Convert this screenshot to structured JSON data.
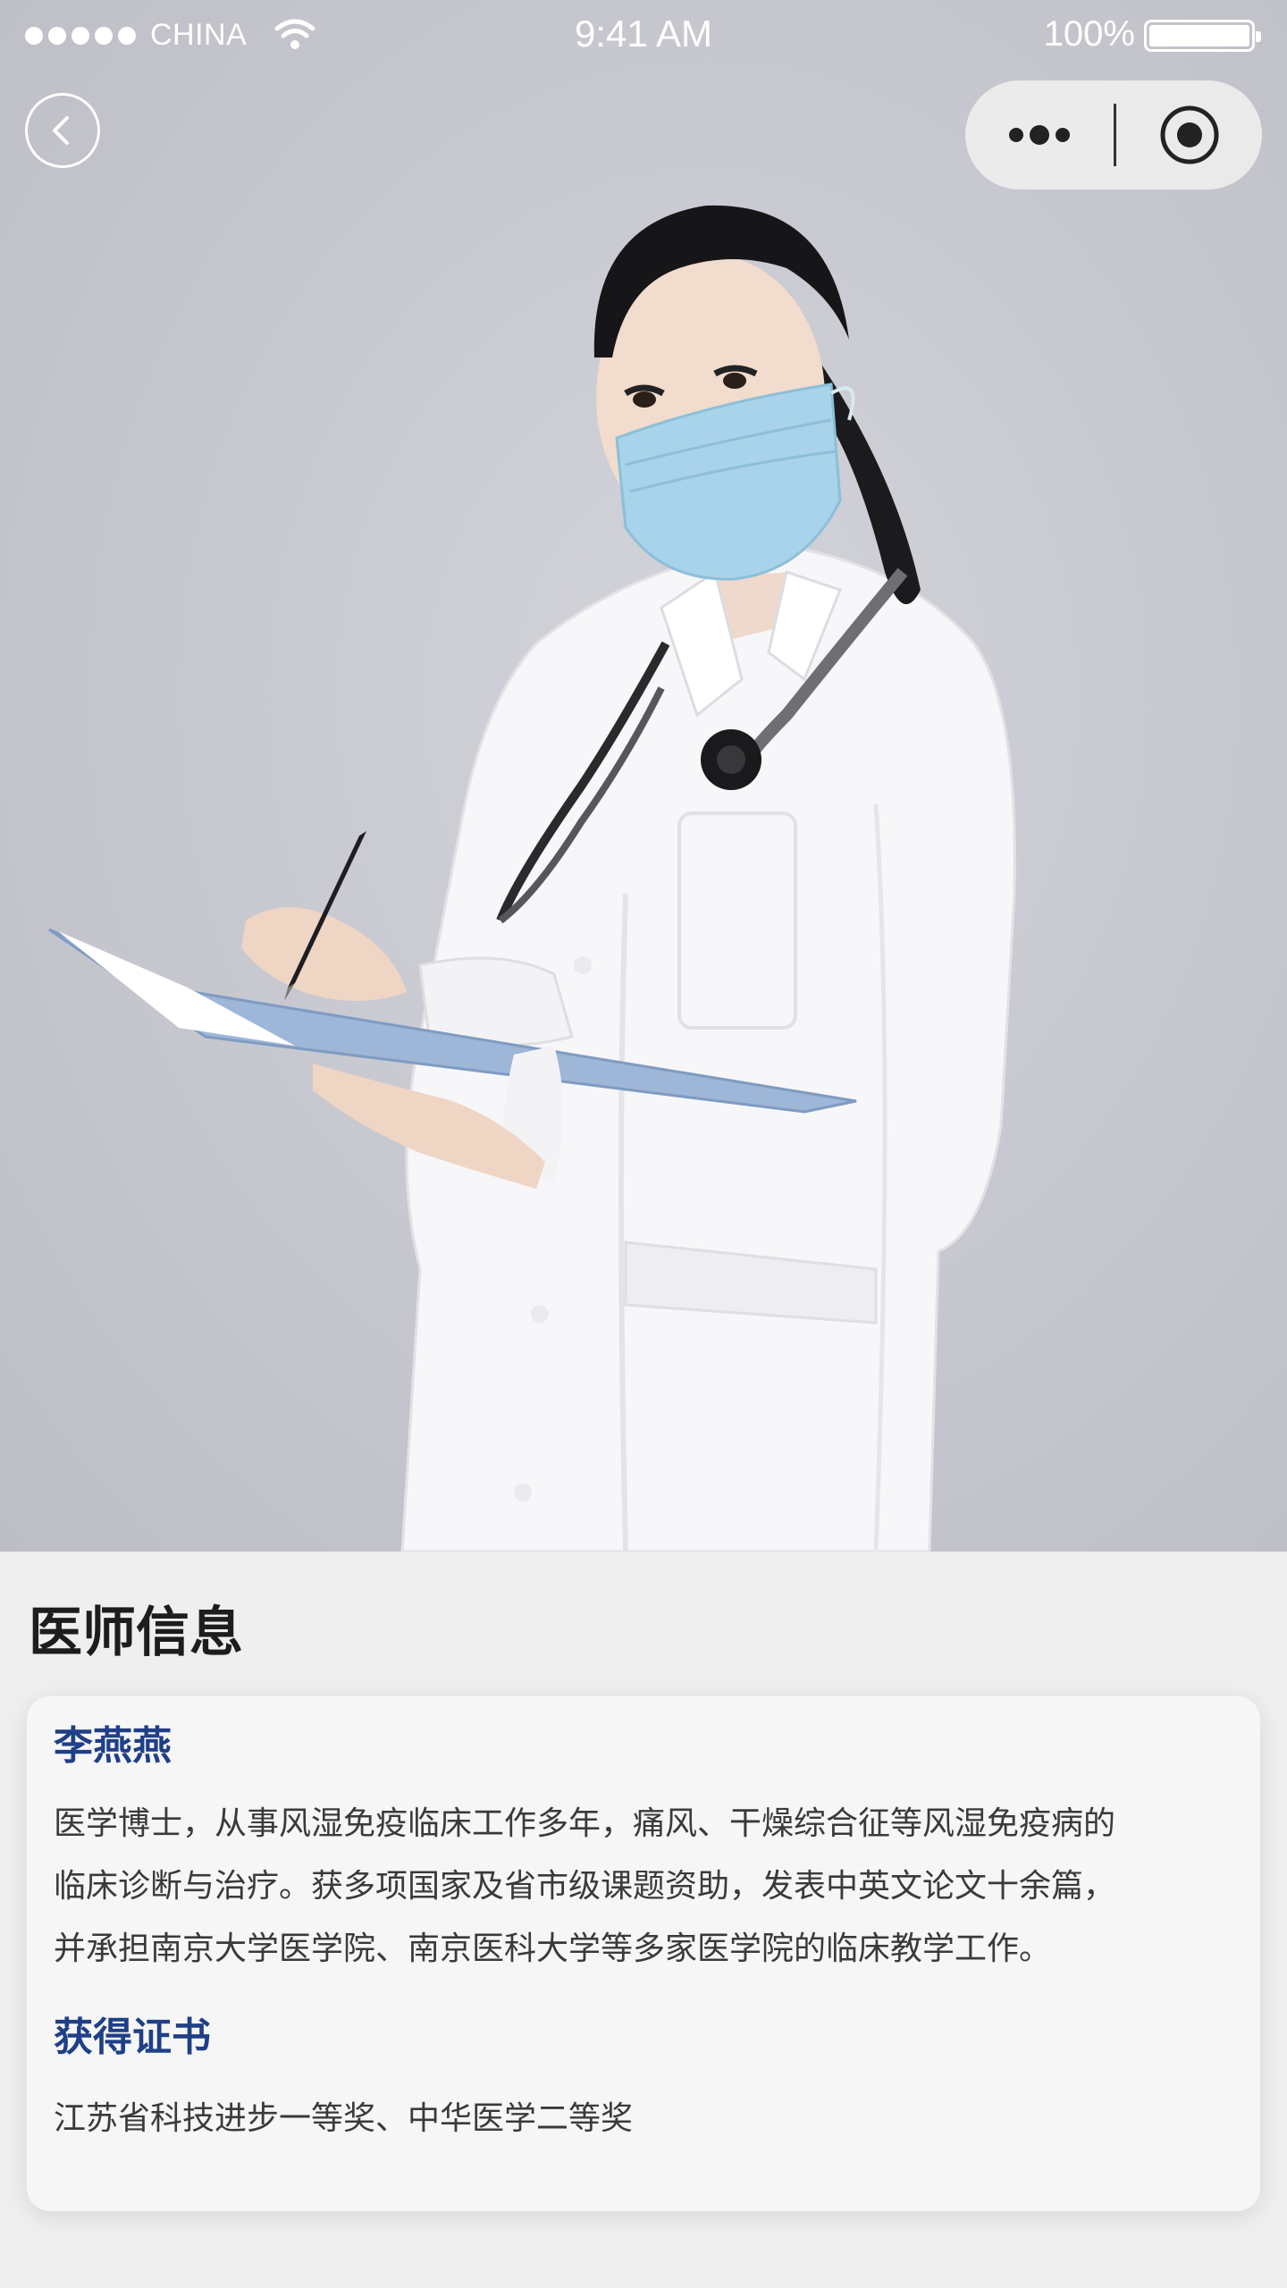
{
  "status_bar": {
    "carrier": "CHINA",
    "time": "9:41 AM",
    "battery": "100%",
    "battery_level": 1.0
  },
  "nav": {
    "back_icon": "chevron-left-icon",
    "more_icon": "more-dots-icon",
    "close_icon": "target-circle-icon"
  },
  "hero": {
    "image": "doctor-portrait-photo"
  },
  "section": {
    "title": "医师信息"
  },
  "doctor": {
    "name": "李燕燕",
    "bio_lines": [
      "医学博士，从事风湿免疫临床工作多年，痛风、干燥综合征等风湿免疫病的",
      "临床诊断与治疗。获多项国家及省市级课题资助，发表中英文论文十余篇，",
      "并承担南京大学医学院、南京医科大学等多家医学院的临床教学工作。"
    ],
    "cert_title": "获得证书",
    "cert_text": "江苏省科技进步一等奖、中华医学二等奖"
  },
  "colors": {
    "accent": "#1f3f86",
    "page_bg": "#efefef",
    "card_bg": "#f6f6f6",
    "hero_bg": "#c9c9d1"
  }
}
